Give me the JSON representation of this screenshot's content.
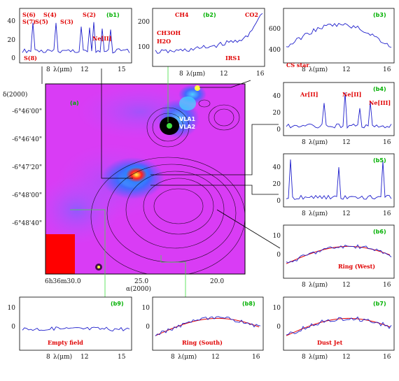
{
  "map": {
    "panel_label": "(a)",
    "ylabel": "δ(2000)",
    "xlabel": "α(2000)",
    "ra_ticks": [
      "6h36m30.0",
      "25.0",
      "20.0"
    ],
    "dec_ticks": [
      "-6°46'00\"",
      "-6°46'40\"",
      "-6°47'20\"",
      "-6°48'00\"",
      "-6°48'40\""
    ],
    "source_labels": [
      "VLA1",
      "VLA2"
    ]
  },
  "chart_data": [
    {
      "id": "b1",
      "type": "line",
      "label": "(b1)",
      "xlabel": "λ(μm)",
      "x_ticks": [
        "8",
        "12",
        "15"
      ],
      "y_ticks": [
        "0",
        "20",
        "40"
      ],
      "xlim": [
        5.5,
        15.5
      ],
      "ylim": [
        -5,
        50
      ],
      "annotations": [
        "S(7)",
        "S(6)",
        "S(5)",
        "S(4)",
        "S(3)",
        "S(2)",
        "S(8)",
        "Ne[II]"
      ]
    },
    {
      "id": "b2",
      "type": "line",
      "label": "(b2)",
      "xlabel": "λ(μm)",
      "x_ticks": [
        "8",
        "12",
        "16"
      ],
      "y_ticks": [
        "100",
        "200"
      ],
      "xlim": [
        5.5,
        16.5
      ],
      "ylim": [
        40,
        230
      ],
      "annotations": [
        "CH3OH",
        "CH4",
        "H2O",
        "CO2",
        "IRS1"
      ]
    },
    {
      "id": "b3",
      "type": "line",
      "label": "(b3)",
      "xlabel": "λ(μm)",
      "x_ticks": [
        "8",
        "12",
        "16"
      ],
      "y_ticks": [
        "400",
        "600"
      ],
      "xlim": [
        5.5,
        16.5
      ],
      "ylim": [
        300,
        720
      ],
      "annotations": [
        "CS star"
      ]
    },
    {
      "id": "b4",
      "type": "line",
      "label": "(b4)",
      "xlabel": "λ(μm)",
      "x_ticks": [
        "8",
        "12",
        "16"
      ],
      "y_ticks": [
        "0",
        "20",
        "40"
      ],
      "xlim": [
        5.5,
        16.5
      ],
      "ylim": [
        -5,
        50
      ],
      "annotations": [
        "Ar[II]",
        "Ne[II]",
        "Ne[III]"
      ]
    },
    {
      "id": "b5",
      "type": "line",
      "label": "(b5)",
      "xlabel": "λ(μm)",
      "x_ticks": [
        "8",
        "12",
        "16"
      ],
      "y_ticks": [
        "0",
        "20",
        "40"
      ],
      "xlim": [
        5.5,
        16.5
      ],
      "ylim": [
        -5,
        50
      ],
      "annotations": []
    },
    {
      "id": "b6",
      "type": "line",
      "label": "(b6)",
      "xlabel": "λ(μm)",
      "x_ticks": [
        "8",
        "12",
        "16"
      ],
      "y_ticks": [
        "0",
        "10"
      ],
      "xlim": [
        5.5,
        16.5
      ],
      "ylim": [
        -5,
        15
      ],
      "annotations": [
        "Ring (West)"
      ]
    },
    {
      "id": "b7",
      "type": "line",
      "label": "(b7)",
      "xlabel": "λ(μm)",
      "x_ticks": [
        "8",
        "12",
        "16"
      ],
      "y_ticks": [
        "0",
        "10"
      ],
      "xlim": [
        5.5,
        16.5
      ],
      "ylim": [
        -5,
        15
      ],
      "annotations": [
        "Dust Jet"
      ]
    },
    {
      "id": "b8",
      "type": "line",
      "label": "(b8)",
      "xlabel": "λ(μm)",
      "x_ticks": [
        "8",
        "12",
        "16"
      ],
      "y_ticks": [
        "0",
        "10"
      ],
      "xlim": [
        5.5,
        16.5
      ],
      "ylim": [
        -5,
        15
      ],
      "annotations": [
        "Ring (South)"
      ]
    },
    {
      "id": "b9",
      "type": "line",
      "label": "(b9)",
      "xlabel": "λ(μm)",
      "x_ticks": [
        "8",
        "12",
        "15"
      ],
      "y_ticks": [
        "0",
        "10"
      ],
      "xlim": [
        5.5,
        15.5
      ],
      "ylim": [
        -5,
        15
      ],
      "annotations": [
        "Empty field"
      ]
    }
  ]
}
